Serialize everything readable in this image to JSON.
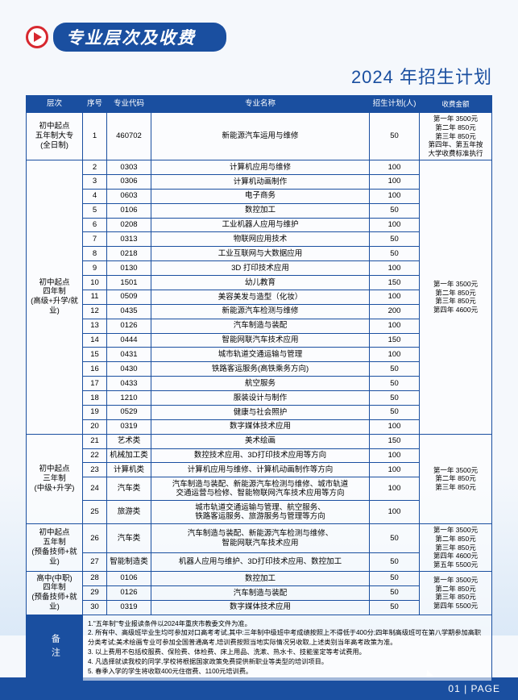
{
  "banner_title": "专业层次及收费",
  "subtitle": "2024 年招生计划",
  "columns": [
    "层次",
    "序号",
    "专业代码",
    "专业名称",
    "招生计划(人)",
    "收费金额"
  ],
  "groups": [
    {
      "level": "初中起点\n五年制大专\n(全日制)",
      "fee": "第一年 3500元\n第二年  850元\n第三年  850元\n第四年、第五年按\n大学收费标准执行",
      "rows": [
        {
          "seq": "1",
          "code": "460702",
          "name": "新能源汽车运用与维修",
          "plan": "50"
        }
      ]
    },
    {
      "level": "初中起点\n四年制\n(高级+升学/就业)",
      "fee": "第一年 3500元\n第二年  850元\n第三年  850元\n第四年 4600元",
      "rows": [
        {
          "seq": "2",
          "code": "0303",
          "name": "计算机应用与维修",
          "plan": "100"
        },
        {
          "seq": "3",
          "code": "0306",
          "name": "计算机动画制作",
          "plan": "100"
        },
        {
          "seq": "4",
          "code": "0603",
          "name": "电子商务",
          "plan": "100"
        },
        {
          "seq": "5",
          "code": "0106",
          "name": "数控加工",
          "plan": "50"
        },
        {
          "seq": "6",
          "code": "0208",
          "name": "工业机器人应用与维护",
          "plan": "100"
        },
        {
          "seq": "7",
          "code": "0313",
          "name": "物联网应用技术",
          "plan": "50"
        },
        {
          "seq": "8",
          "code": "0218",
          "name": "工业互联网与大数据应用",
          "plan": "50"
        },
        {
          "seq": "9",
          "code": "0130",
          "name": "3D 打印技术应用",
          "plan": "100"
        },
        {
          "seq": "10",
          "code": "1501",
          "name": "幼儿教育",
          "plan": "150"
        },
        {
          "seq": "11",
          "code": "0509",
          "name": "美容美发与造型（化妆）",
          "plan": "100"
        },
        {
          "seq": "12",
          "code": "0435",
          "name": "新能源汽车检测与维修",
          "plan": "200"
        },
        {
          "seq": "13",
          "code": "0126",
          "name": "汽车制造与装配",
          "plan": "100"
        },
        {
          "seq": "14",
          "code": "0444",
          "name": "智能网联汽车技术应用",
          "plan": "150"
        },
        {
          "seq": "15",
          "code": "0431",
          "name": "城市轨道交通运输与管理",
          "plan": "100"
        },
        {
          "seq": "16",
          "code": "0430",
          "name": "铁路客运服务(高铁乘务方向)",
          "plan": "50"
        },
        {
          "seq": "17",
          "code": "0433",
          "name": "航空服务",
          "plan": "50"
        },
        {
          "seq": "18",
          "code": "1210",
          "name": "服装设计与制作",
          "plan": "50"
        },
        {
          "seq": "19",
          "code": "0529",
          "name": "健康与社会照护",
          "plan": "50"
        },
        {
          "seq": "20",
          "code": "0319",
          "name": "数字媒体技术应用",
          "plan": "100"
        }
      ]
    },
    {
      "level": "初中起点\n三年制\n(中级+升学)",
      "fee": "第一年 3500元\n第二年  850元\n第三年  850元",
      "rows": [
        {
          "seq": "21",
          "code": "艺术类",
          "name": "美术绘画",
          "plan": "150"
        },
        {
          "seq": "22",
          "code": "机械加工类",
          "name": "数控技术应用、3D打印技术应用等方向",
          "plan": "100"
        },
        {
          "seq": "23",
          "code": "计算机类",
          "name": "计算机应用与维修、计算机动画制作等方向",
          "plan": "100"
        },
        {
          "seq": "24",
          "code": "汽车类",
          "name": "汽车制造与装配、新能源汽车检测与维修、城市轨道\n交通运营与检修、智能物联网汽车技术应用等方向",
          "plan": "100"
        },
        {
          "seq": "25",
          "code": "旅游类",
          "name": "城市轨道交通运输与管理、航空服务、\n铁路客运服务、旅游服务与管理等方向",
          "plan": "100"
        }
      ]
    },
    {
      "level": "初中起点\n五年制\n(预备技师+就业)",
      "fee": "第一年 3500元\n第二年  850元\n第三年  850元\n第四年 4600元\n第五年 5500元",
      "rows": [
        {
          "seq": "26",
          "code": "汽车类",
          "name": "汽车制造与装配、新能源汽车检测与维修、\n智能网联汽车技术应用",
          "plan": "50"
        },
        {
          "seq": "27",
          "code": "智能制造类",
          "name": "机器人应用与维护、3D打印技术应用、数控加工",
          "plan": "50"
        }
      ]
    },
    {
      "level": "高中(中职)\n四年制\n(预备技师+就业)",
      "fee": "第一年 3500元\n第二年  850元\n第三年  850元\n第四年 5500元",
      "rows": [
        {
          "seq": "28",
          "code": "0106",
          "name": "数控加工",
          "plan": "50"
        },
        {
          "seq": "29",
          "code": "0126",
          "name": "汽车制造与装配",
          "plan": "50"
        },
        {
          "seq": "30",
          "code": "0319",
          "name": "数字媒体技术应用",
          "plan": "50"
        }
      ]
    }
  ],
  "notes_label": "备注",
  "notes": [
    "1.\"五年制\"专业报读条件以2024年重庆市教委文件为准。",
    "2. 所有中、高级班毕业生均可参加对口高考考试,其中:三年制中级班中考成绩按照上不得低于400分;四年制高级班可在第八学期参加高职分类考试;美术绘画专业可参加全国普通高考,培训费按照当地实际情况另收取,上述类别当年高考政策为准。",
    "3. 以上费用不包括校服费、保险费、体检费、床上用品、洗漱、热水卡、技能鉴定等考试费用。",
    "4. 凡选择就读我校的同学,学校将根据国家政策免费提供新职业等类型的培训项目。",
    "5. 春季入学的学生将收取400元住宿费、1100元培训费。"
  ],
  "footer": "01 | PAGE"
}
